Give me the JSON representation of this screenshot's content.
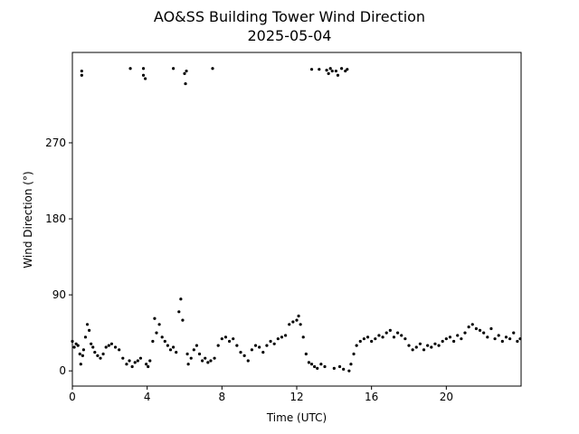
{
  "chart_data": {
    "type": "scatter",
    "title": "AO&SS Building Tower Wind Direction",
    "subtitle": "2025-05-04",
    "x_label": "Time (UTC)",
    "y_label": "Wind Direction (°)",
    "xlim": [
      0,
      24
    ],
    "ylim": [
      -18,
      377
    ],
    "xticks": [
      0,
      4,
      8,
      12,
      16,
      20
    ],
    "yticks": [
      0,
      90,
      180,
      270
    ],
    "series": [
      {
        "name": "Wind Direction",
        "color": "#000000",
        "x": [
          0.0,
          0.1,
          0.2,
          0.3,
          0.4,
          0.45,
          0.5,
          0.5,
          0.55,
          0.6,
          0.7,
          0.8,
          0.9,
          1.0,
          1.1,
          1.2,
          1.35,
          1.5,
          1.65,
          1.8,
          1.95,
          2.1,
          2.3,
          2.5,
          2.7,
          2.9,
          3.05,
          3.1,
          3.2,
          3.35,
          3.5,
          3.65,
          3.8,
          3.8,
          3.9,
          3.95,
          4.05,
          4.15,
          4.3,
          4.4,
          4.5,
          4.65,
          4.8,
          4.95,
          5.1,
          5.25,
          5.4,
          5.4,
          5.55,
          5.7,
          5.8,
          5.9,
          6.0,
          6.05,
          6.1,
          6.15,
          6.2,
          6.35,
          6.5,
          6.65,
          6.8,
          6.95,
          7.1,
          7.25,
          7.4,
          7.5,
          7.6,
          7.8,
          8.0,
          8.2,
          8.4,
          8.6,
          8.8,
          9.0,
          9.2,
          9.4,
          9.6,
          9.8,
          10.0,
          10.2,
          10.4,
          10.6,
          10.8,
          11.0,
          11.2,
          11.4,
          11.6,
          11.8,
          12.0,
          12.1,
          12.2,
          12.35,
          12.5,
          12.65,
          12.8,
          12.8,
          12.95,
          13.1,
          13.2,
          13.3,
          13.5,
          13.6,
          13.7,
          13.8,
          13.9,
          14.0,
          14.1,
          14.2,
          14.3,
          14.4,
          14.5,
          14.6,
          14.7,
          14.8,
          14.9,
          15.05,
          15.2,
          15.4,
          15.6,
          15.8,
          16.0,
          16.2,
          16.4,
          16.6,
          16.8,
          17.0,
          17.2,
          17.4,
          17.6,
          17.8,
          18.0,
          18.2,
          18.4,
          18.6,
          18.8,
          19.0,
          19.2,
          19.4,
          19.6,
          19.8,
          20.0,
          20.2,
          20.4,
          20.6,
          20.8,
          21.0,
          21.2,
          21.4,
          21.6,
          21.8,
          22.0,
          22.2,
          22.4,
          22.6,
          22.8,
          23.0,
          23.2,
          23.4,
          23.6,
          23.8,
          23.95
        ],
        "y": [
          35,
          28,
          32,
          30,
          20,
          8,
          355,
          350,
          18,
          25,
          40,
          55,
          48,
          32,
          28,
          22,
          18,
          15,
          20,
          28,
          30,
          32,
          28,
          25,
          15,
          8,
          12,
          358,
          5,
          10,
          12,
          15,
          358,
          350,
          346,
          8,
          5,
          12,
          35,
          62,
          45,
          55,
          40,
          35,
          30,
          25,
          358,
          28,
          22,
          70,
          85,
          60,
          352,
          340,
          355,
          20,
          8,
          15,
          25,
          30,
          20,
          12,
          15,
          10,
          12,
          358,
          15,
          30,
          38,
          40,
          35,
          38,
          30,
          22,
          18,
          12,
          25,
          30,
          28,
          22,
          30,
          35,
          32,
          38,
          40,
          42,
          55,
          58,
          60,
          65,
          55,
          40,
          20,
          10,
          8,
          357,
          5,
          3,
          357,
          8,
          5,
          356,
          352,
          358,
          355,
          3,
          355,
          350,
          5,
          358,
          2,
          355,
          357,
          0,
          8,
          20,
          30,
          35,
          38,
          40,
          35,
          38,
          42,
          40,
          45,
          48,
          40,
          45,
          42,
          38,
          30,
          25,
          28,
          32,
          25,
          30,
          28,
          32,
          30,
          35,
          38,
          40,
          35,
          42,
          38,
          45,
          52,
          55,
          50,
          48,
          45,
          40,
          50,
          38,
          42,
          35,
          40,
          38,
          45,
          35,
          38
        ]
      }
    ]
  }
}
